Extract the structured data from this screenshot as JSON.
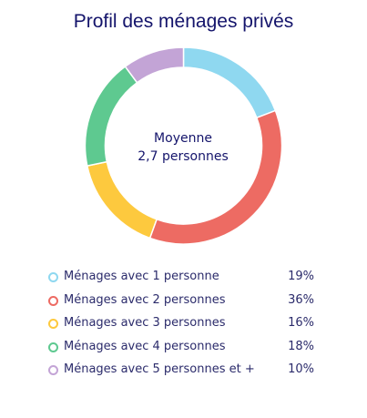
{
  "chart_data": {
    "type": "pie",
    "title": "Profil des ménages privés",
    "center_label": {
      "line1": "Moyenne",
      "line2": "2,7 personnes"
    },
    "series": [
      {
        "name": "Ménages avec 1 personne",
        "value": 19,
        "value_label": "19%",
        "color": "#8fd8f0"
      },
      {
        "name": "Ménages avec 2 personnes",
        "value": 36,
        "value_label": "36%",
        "color": "#ed6b63"
      },
      {
        "name": "Ménages avec 3 personnes",
        "value": 16,
        "value_label": "16%",
        "color": "#fdc93e"
      },
      {
        "name": "Ménages avec 4 personnes",
        "value": 18,
        "value_label": "18%",
        "color": "#5ec990"
      },
      {
        "name": "Ménages avec 5 personnes et +",
        "value": 10,
        "value_label": "10%",
        "color": "#c3a4d6"
      }
    ],
    "legend_position": "bottom"
  }
}
